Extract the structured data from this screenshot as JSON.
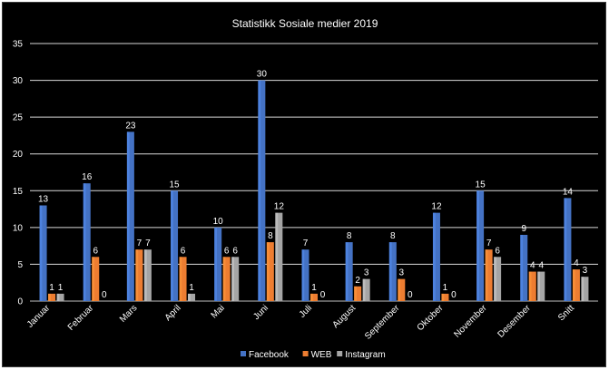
{
  "chart_data": {
    "type": "bar",
    "title": "Statistikk Sosiale medier 2019",
    "categories": [
      "Januar",
      "Februar",
      "Mars",
      "April",
      "Mai",
      "Juni",
      "Juli",
      "August",
      "September",
      "Oktober",
      "November",
      "Desember",
      "Snitt"
    ],
    "series": [
      {
        "name": "Facebook",
        "color": "#4472c4",
        "values": [
          13,
          16,
          23,
          15,
          10,
          30,
          7,
          8,
          8,
          12,
          15,
          9,
          14
        ],
        "labels": [
          "13",
          "16",
          "23",
          "15",
          "10",
          "30",
          "7",
          "8",
          "8",
          "12",
          "15",
          "9",
          "14"
        ]
      },
      {
        "name": "WEB",
        "color": "#ed7d31",
        "values": [
          1,
          6,
          7,
          6,
          6,
          8,
          1,
          2,
          3,
          1,
          7,
          4,
          4.3
        ],
        "labels": [
          "1",
          "6",
          "7",
          "6",
          "6",
          "8",
          "1",
          "2",
          "3",
          "1",
          "7",
          "4",
          "4"
        ]
      },
      {
        "name": "Instagram",
        "color": "#a5a5a5",
        "values": [
          1,
          0,
          7,
          1,
          6,
          12,
          0,
          3,
          0,
          0,
          6,
          4,
          3.3
        ],
        "labels": [
          "1",
          "0",
          "7",
          "1",
          "6",
          "12",
          "0",
          "3",
          "0",
          "0",
          "6",
          "4",
          "3"
        ]
      }
    ],
    "ylim": [
      0,
      35
    ],
    "yticks": [
      0,
      5,
      10,
      15,
      20,
      25,
      30,
      35
    ],
    "grid": true,
    "legend_position": "bottom"
  }
}
